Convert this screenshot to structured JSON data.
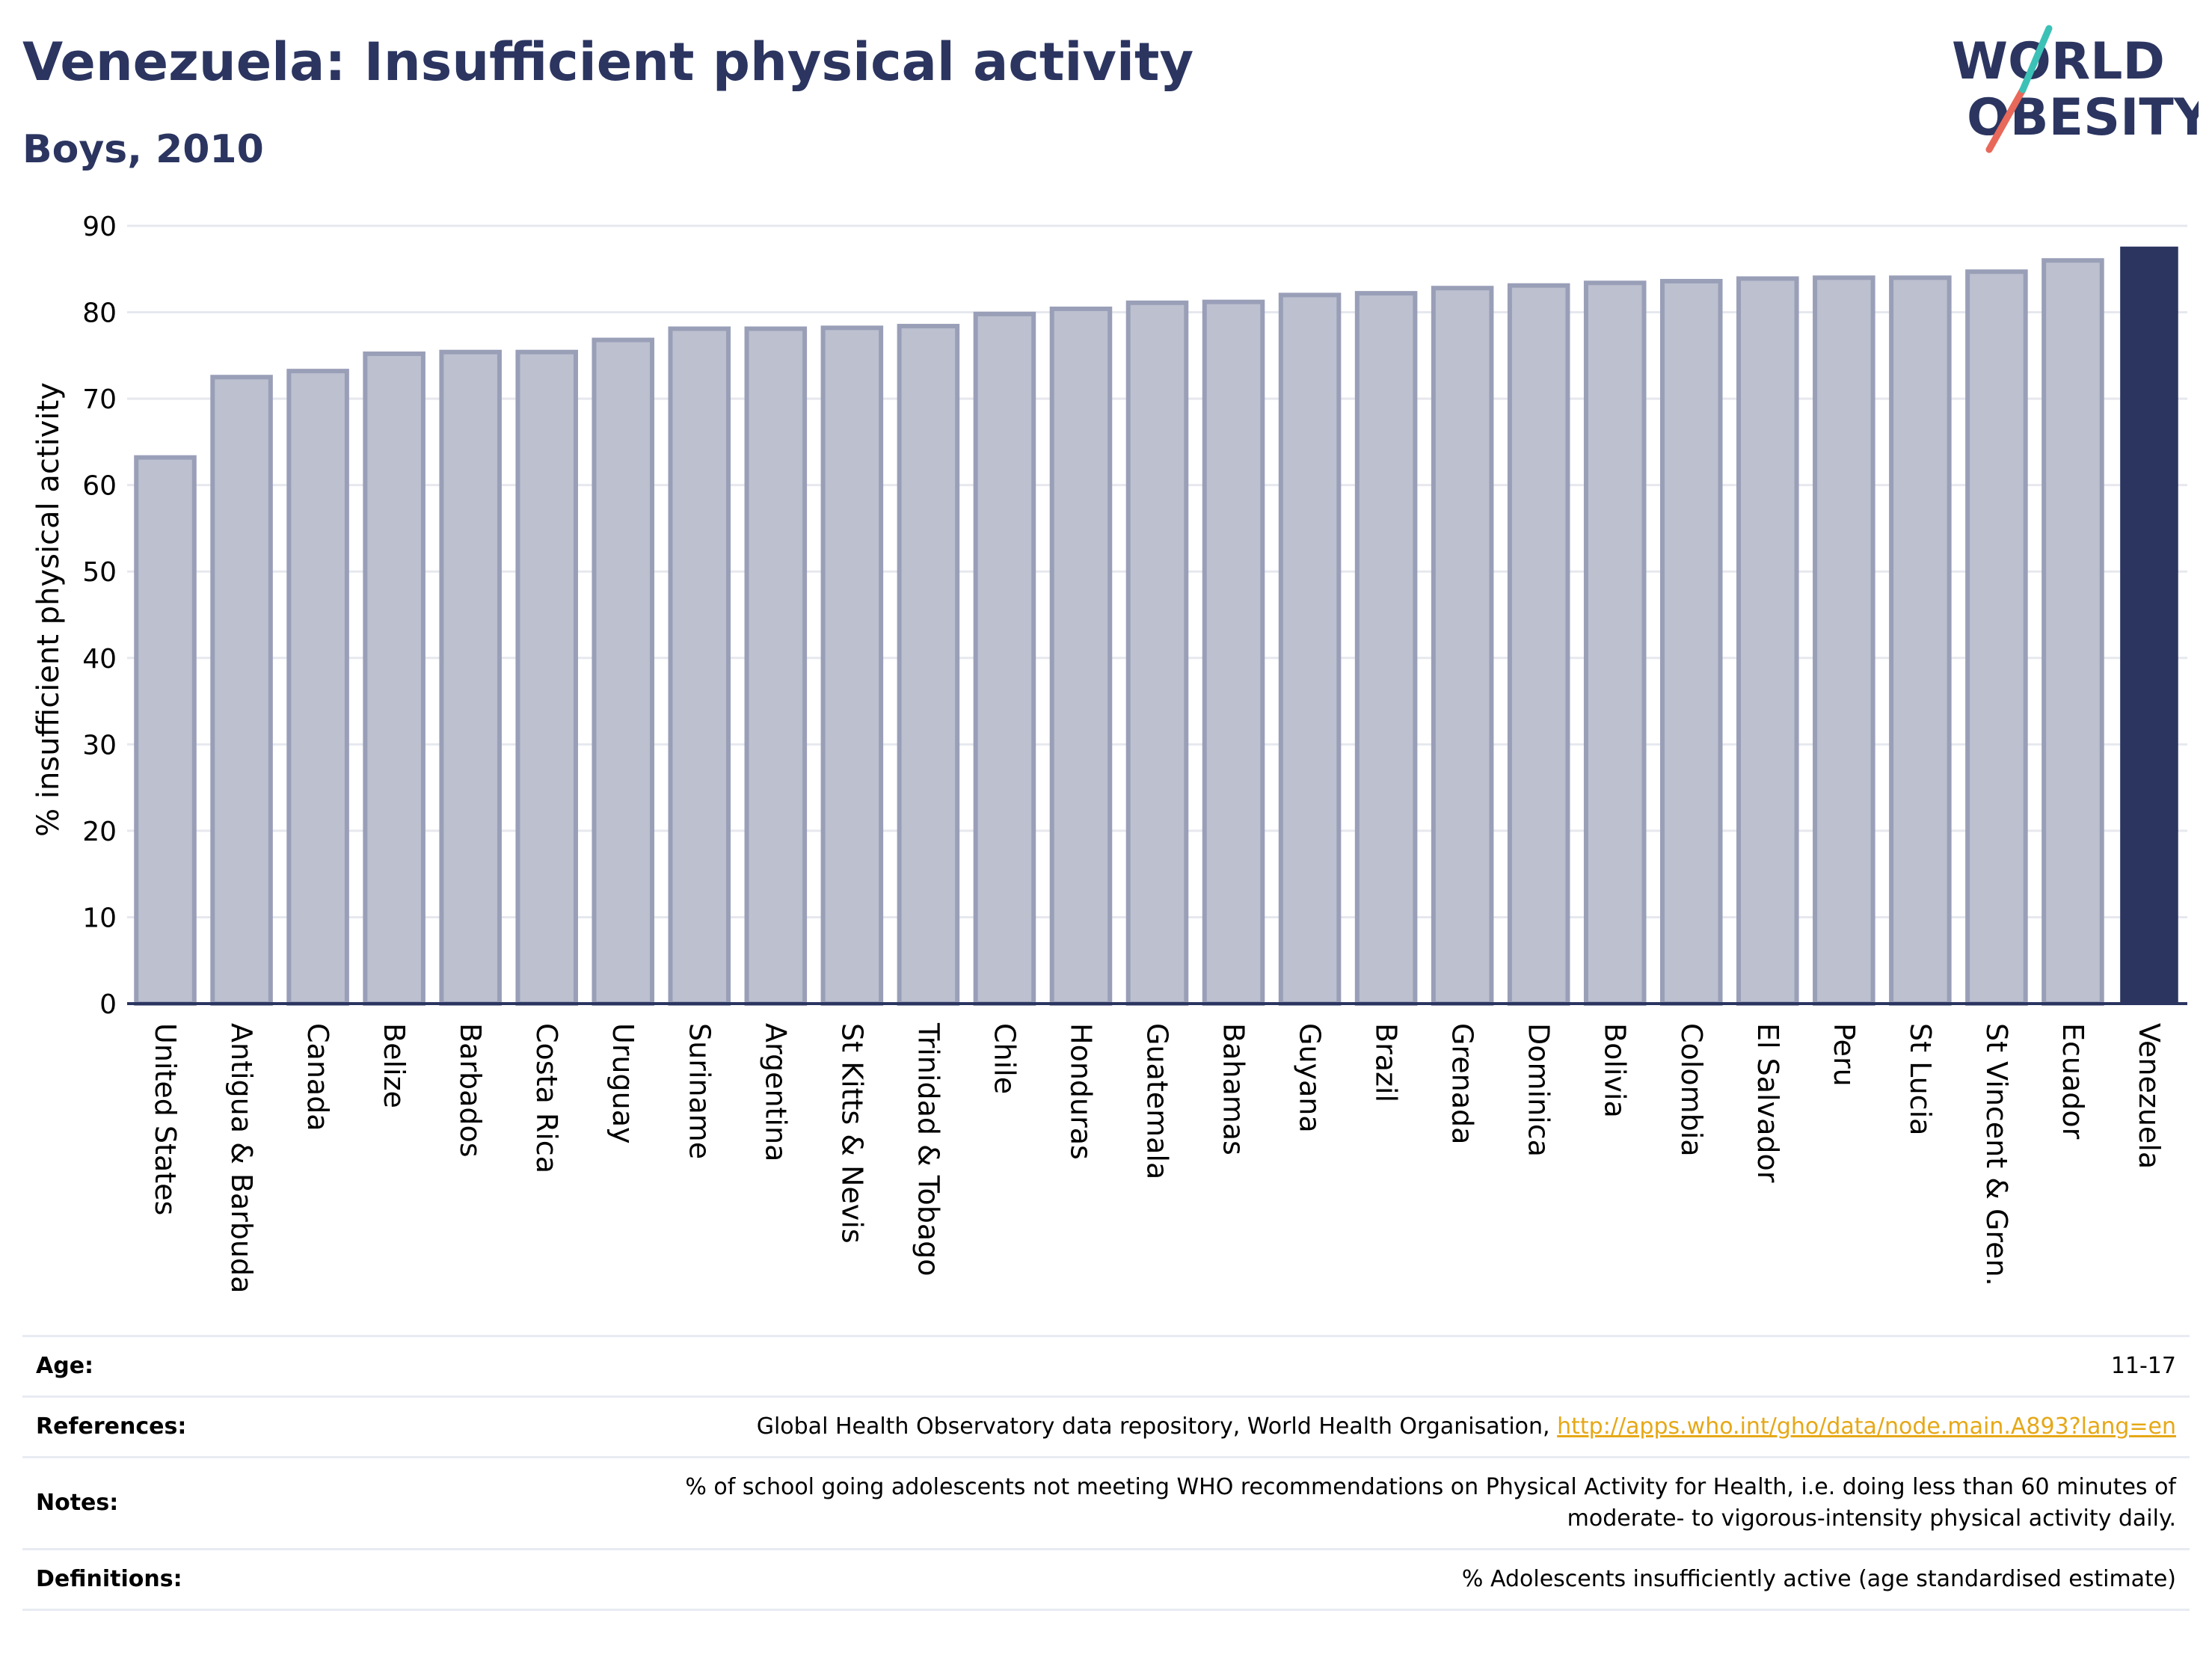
{
  "header": {
    "title": "Venezuela: Insufficient physical activity",
    "subtitle": "Boys, 2010"
  },
  "logo": {
    "line1": "WORLD",
    "line2": "OBESITY",
    "colors": {
      "text": "#2b3560",
      "slash_red": "#e8685a",
      "slash_teal": "#3cc1b6"
    }
  },
  "chart_data": {
    "type": "bar",
    "title": "Venezuela: Insufficient physical activity",
    "subtitle": "Boys, 2010",
    "ylabel": "% insufficient physical activity",
    "xlabel": "",
    "ylim": [
      0,
      90
    ],
    "yticks": [
      0,
      10,
      20,
      30,
      40,
      50,
      60,
      70,
      80,
      90
    ],
    "grid": true,
    "highlight": "Venezuela",
    "colors": {
      "bar": "#bcc0cf",
      "bar_outline": "#9a9fb8",
      "highlight": "#2b3560",
      "grid": "#e6e8ee",
      "axis": "#2b3560"
    },
    "categories": [
      "United States",
      "Antigua & Barbuda",
      "Canada",
      "Belize",
      "Barbados",
      "Costa Rica",
      "Uruguay",
      "Suriname",
      "Argentina",
      "St Kitts & Nevis",
      "Trinidad & Tobago",
      "Chile",
      "Honduras",
      "Guatemala",
      "Bahamas",
      "Guyana",
      "Brazil",
      "Grenada",
      "Dominica",
      "Bolivia",
      "Colombia",
      "El Salvador",
      "Peru",
      "St Lucia",
      "St Vincent & Gren.",
      "Ecuador",
      "Venezuela"
    ],
    "values": [
      63.2,
      72.5,
      73.2,
      75.2,
      75.4,
      75.4,
      76.8,
      78.1,
      78.1,
      78.2,
      78.4,
      79.8,
      80.4,
      81.1,
      81.2,
      82.0,
      82.2,
      82.8,
      83.1,
      83.4,
      83.6,
      83.9,
      84.0,
      84.0,
      84.7,
      86.0,
      87.6
    ]
  },
  "info": {
    "age_label": "Age:",
    "age_value": "11-17",
    "references_label": "References:",
    "references_text": "Global Health Observatory data repository, World Health Organisation,",
    "references_link": "http://apps.who.int/gho/data/node.main.A893?lang=en",
    "notes_label": "Notes:",
    "notes_line1": "% of school going adolescents not meeting WHO recommendations on Physical Activity for Health, i.e. doing less than 60 minutes of",
    "notes_line2": "moderate- to vigorous-intensity physical activity daily.",
    "definitions_label": "Definitions:",
    "definitions_value": "% Adolescents insufficiently active (age standardised estimate)"
  }
}
